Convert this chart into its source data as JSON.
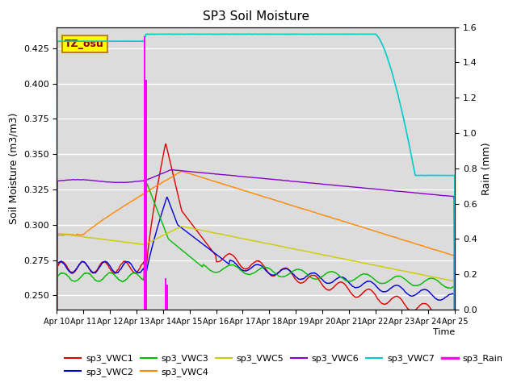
{
  "title": "SP3 Soil Moisture",
  "ylabel_left": "Soil Moisture (m3/m3)",
  "ylabel_right": "Rain (mm)",
  "xlabel": "Time",
  "ylim_left": [
    0.24,
    0.44
  ],
  "ylim_right": [
    0.0,
    1.6
  ],
  "xtick_labels": [
    "Apr 10",
    "Apr 11",
    "Apr 12",
    "Apr 13",
    "Apr 14",
    "Apr 15",
    "Apr 16",
    "Apr 17",
    "Apr 18",
    "Apr 19",
    "Apr 20",
    "Apr 21",
    "Apr 22",
    "Apr 23",
    "Apr 24",
    "Apr 25"
  ],
  "colors": {
    "VWC1": "#dd0000",
    "VWC2": "#0000dd",
    "VWC3": "#00bb00",
    "VWC4": "#ff8800",
    "VWC5": "#cccc00",
    "VWC6": "#8800cc",
    "VWC7": "#00cccc",
    "Rain": "#ff00ff"
  },
  "bg_color": "#dcdcdc",
  "annotation_text": "TZ_osu",
  "annotation_color": "#880000",
  "annotation_bg": "#ffff00",
  "annotation_border": "#bb8800",
  "legend_labels": [
    "sp3_VWC1",
    "sp3_VWC2",
    "sp3_VWC3",
    "sp3_VWC4",
    "sp3_VWC5",
    "sp3_VWC6",
    "sp3_VWC7",
    "sp3_Rain"
  ]
}
